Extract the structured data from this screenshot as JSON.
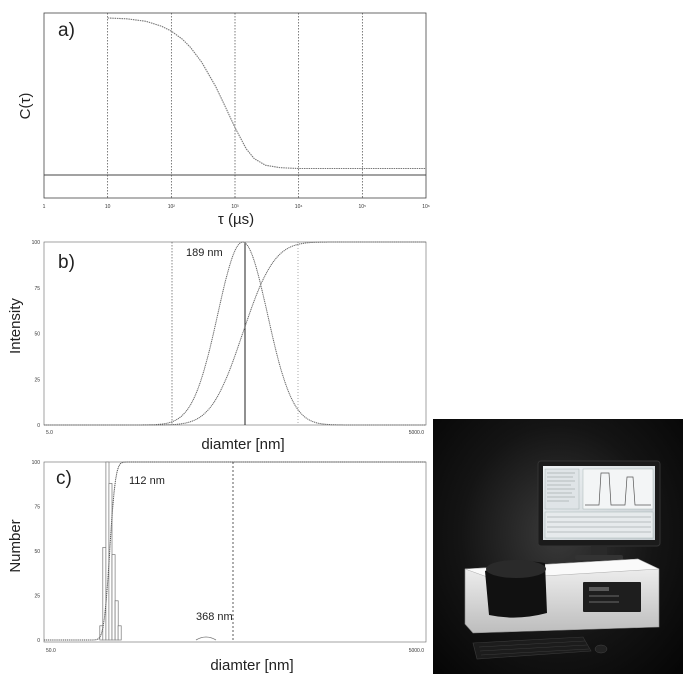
{
  "chart_data": [
    {
      "type": "line",
      "panel_label": "a)",
      "xlabel": "τ (µs)",
      "ylabel": "C(τ)",
      "x_scale": "log",
      "xlim": [
        1,
        1000000
      ],
      "x_tick_labels": [
        "1",
        "10",
        "10²",
        "10³",
        "10⁴",
        "10⁵",
        "10⁶"
      ],
      "grid": "vertical dotted lines at decades",
      "baseline_level": 0.04,
      "series": [
        {
          "x": [
            10,
            20,
            40,
            70,
            100,
            150,
            200,
            300,
            500,
            700,
            1000,
            1500,
            2000,
            3000,
            5000,
            7000,
            10000,
            30000,
            100000,
            1000000
          ],
          "y": [
            1.0,
            0.995,
            0.98,
            0.95,
            0.92,
            0.87,
            0.82,
            0.73,
            0.58,
            0.46,
            0.33,
            0.2,
            0.14,
            0.1,
            0.085,
            0.082,
            0.08,
            0.08,
            0.08,
            0.08
          ]
        }
      ]
    },
    {
      "type": "line",
      "panel_label": "b)",
      "xlabel": "diamter [nm]",
      "ylabel": "Intensity",
      "x_tick_labels": [
        "5.0",
        "5000.0"
      ],
      "y_tick_labels": [
        "0",
        "25",
        "50",
        "75",
        "100"
      ],
      "ylim": [
        0,
        100
      ],
      "annotations": [
        "189 nm"
      ],
      "peak_position_fraction": 0.52,
      "distribution_width_fraction": 0.065,
      "series": [
        {
          "kind": "distribution",
          "peak": 100
        },
        {
          "kind": "cumulative",
          "max": 100
        }
      ]
    },
    {
      "type": "bar",
      "panel_label": "c)",
      "xlabel": "diamter [nm]",
      "ylabel": "Number",
      "x_tick_labels": [
        "50.0",
        "5000.0"
      ],
      "y_tick_labels": [
        "0",
        "25",
        "50",
        "75",
        "100"
      ],
      "ylim": [
        0,
        100
      ],
      "annotations": [
        "112 nm",
        "368 nm"
      ],
      "bins": [
        {
          "pos": 0.15,
          "value": 8
        },
        {
          "pos": 0.158,
          "value": 52
        },
        {
          "pos": 0.166,
          "value": 100
        },
        {
          "pos": 0.174,
          "value": 88
        },
        {
          "pos": 0.182,
          "value": 48
        },
        {
          "pos": 0.19,
          "value": 22
        },
        {
          "pos": 0.198,
          "value": 8
        }
      ],
      "cumulative_series": {
        "kind": "cumulative",
        "max": 100
      }
    }
  ],
  "photo": {
    "description_icon": "dls-instrument-photo",
    "colors": {
      "background": "#111111",
      "instrument_body": "#e8e8e8",
      "instrument_dark": "#1a1a1a",
      "monitor_screen": "#d8dde0"
    }
  }
}
